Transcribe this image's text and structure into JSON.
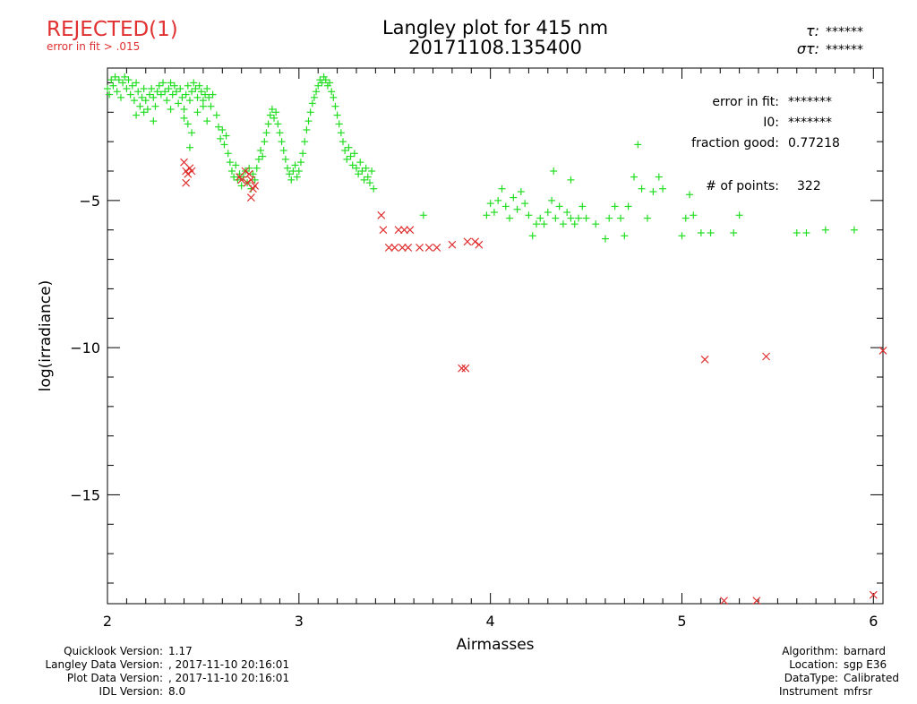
{
  "status": {
    "rejected": "REJECTED(1)",
    "reason": "error in fit > .015",
    "color": "#e03030"
  },
  "chart_data": {
    "type": "scatter",
    "title": "Langley plot for 415 nm",
    "subtitle": "20171108.135400",
    "xlabel": "Airmasses",
    "ylabel": "log(irradiance)",
    "xlim": [
      2,
      6.05
    ],
    "ylim": [
      -18.7,
      -0.5
    ],
    "x_ticks": [
      2,
      3,
      4,
      5,
      6
    ],
    "x_tick_labels": [
      "2",
      "3",
      "4",
      "5",
      "6"
    ],
    "y_ticks": [
      -5,
      -10,
      -15
    ],
    "y_tick_labels": [
      "−5",
      "−10",
      "−15"
    ],
    "tau_label": "τ",
    "tau_value": "******",
    "sigma_label": "στ",
    "sigma_value": "******",
    "stats": {
      "error_in_fit_label": "error in fit:",
      "error_in_fit_value": "*******",
      "i0_label": "I0:",
      "i0_value": "*******",
      "fraction_good_label": "fraction good:",
      "fraction_good_value": "0.77218",
      "points_label": "# of points:",
      "points_value": "322"
    },
    "series": [
      {
        "name": "good",
        "marker": "+",
        "color": "#22dd22",
        "points": [
          [
            2.0,
            -1.2
          ],
          [
            2.01,
            -1.4
          ],
          [
            2.02,
            -0.9
          ],
          [
            2.03,
            -1.1
          ],
          [
            2.04,
            -0.8
          ],
          [
            2.05,
            -1.3
          ],
          [
            2.06,
            -0.9
          ],
          [
            2.07,
            -1.5
          ],
          [
            2.08,
            -1.0
          ],
          [
            2.09,
            -0.8
          ],
          [
            2.1,
            -1.2
          ],
          [
            2.11,
            -0.9
          ],
          [
            2.12,
            -1.4
          ],
          [
            2.13,
            -1.1
          ],
          [
            2.14,
            -1.6
          ],
          [
            2.15,
            -1.0
          ],
          [
            2.16,
            -1.3
          ],
          [
            2.17,
            -1.8
          ],
          [
            2.18,
            -1.5
          ],
          [
            2.19,
            -1.2
          ],
          [
            2.2,
            -1.6
          ],
          [
            2.21,
            -1.9
          ],
          [
            2.22,
            -1.4
          ],
          [
            2.23,
            -1.2
          ],
          [
            2.24,
            -1.5
          ],
          [
            2.25,
            -1.8
          ],
          [
            2.26,
            -1.3
          ],
          [
            2.27,
            -1.1
          ],
          [
            2.28,
            -1.4
          ],
          [
            2.29,
            -1.0
          ],
          [
            2.3,
            -1.3
          ],
          [
            2.31,
            -1.6
          ],
          [
            2.32,
            -1.2
          ],
          [
            2.33,
            -1.0
          ],
          [
            2.34,
            -1.4
          ],
          [
            2.35,
            -1.1
          ],
          [
            2.36,
            -1.3
          ],
          [
            2.37,
            -1.7
          ],
          [
            2.38,
            -1.2
          ],
          [
            2.39,
            -1.5
          ],
          [
            2.4,
            -1.9
          ],
          [
            2.41,
            -1.4
          ],
          [
            2.42,
            -1.1
          ],
          [
            2.43,
            -1.6
          ],
          [
            2.44,
            -1.3
          ],
          [
            2.45,
            -1.0
          ],
          [
            2.46,
            -1.2
          ],
          [
            2.47,
            -1.5
          ],
          [
            2.48,
            -1.1
          ],
          [
            2.49,
            -1.3
          ],
          [
            2.5,
            -1.6
          ],
          [
            2.51,
            -1.4
          ],
          [
            2.52,
            -1.2
          ],
          [
            2.53,
            -1.5
          ],
          [
            2.54,
            -1.8
          ],
          [
            2.15,
            -2.1
          ],
          [
            2.19,
            -2.0
          ],
          [
            2.24,
            -2.3
          ],
          [
            2.33,
            -1.9
          ],
          [
            2.4,
            -2.2
          ],
          [
            2.42,
            -2.4
          ],
          [
            2.44,
            -2.7
          ],
          [
            2.43,
            -3.2
          ],
          [
            2.47,
            -2.0
          ],
          [
            2.5,
            -1.8
          ],
          [
            2.52,
            -2.3
          ],
          [
            2.55,
            -1.4
          ],
          [
            2.57,
            -2.1
          ],
          [
            2.58,
            -2.5
          ],
          [
            2.59,
            -2.9
          ],
          [
            2.6,
            -2.6
          ],
          [
            2.61,
            -3.1
          ],
          [
            2.62,
            -2.8
          ],
          [
            2.63,
            -3.4
          ],
          [
            2.64,
            -3.7
          ],
          [
            2.65,
            -4.0
          ],
          [
            2.66,
            -4.2
          ],
          [
            2.67,
            -3.8
          ],
          [
            2.68,
            -4.3
          ],
          [
            2.69,
            -4.1
          ],
          [
            2.7,
            -4.5
          ],
          [
            2.71,
            -4.2
          ],
          [
            2.72,
            -4.0
          ],
          [
            2.73,
            -4.4
          ],
          [
            2.74,
            -3.9
          ],
          [
            2.75,
            -4.6
          ],
          [
            2.76,
            -4.1
          ],
          [
            2.77,
            -4.3
          ],
          [
            2.78,
            -3.9
          ],
          [
            2.79,
            -3.6
          ],
          [
            2.8,
            -3.3
          ],
          [
            2.81,
            -3.5
          ],
          [
            2.82,
            -3.0
          ],
          [
            2.83,
            -2.7
          ],
          [
            2.84,
            -2.4
          ],
          [
            2.85,
            -2.1
          ],
          [
            2.86,
            -1.9
          ],
          [
            2.87,
            -2.2
          ],
          [
            2.88,
            -2.0
          ],
          [
            2.89,
            -2.4
          ],
          [
            2.9,
            -2.7
          ],
          [
            2.91,
            -3.0
          ],
          [
            2.92,
            -3.3
          ],
          [
            2.93,
            -3.6
          ],
          [
            2.94,
            -3.9
          ],
          [
            2.95,
            -4.1
          ],
          [
            2.96,
            -4.3
          ],
          [
            2.97,
            -4.0
          ],
          [
            2.98,
            -3.8
          ],
          [
            2.99,
            -4.2
          ],
          [
            3.0,
            -4.0
          ],
          [
            3.01,
            -3.7
          ],
          [
            3.02,
            -3.4
          ],
          [
            3.03,
            -3.0
          ],
          [
            3.04,
            -2.6
          ],
          [
            3.05,
            -2.3
          ],
          [
            3.06,
            -2.0
          ],
          [
            3.07,
            -1.7
          ],
          [
            3.08,
            -1.5
          ],
          [
            3.09,
            -1.3
          ],
          [
            3.1,
            -1.1
          ],
          [
            3.11,
            -0.9
          ],
          [
            3.12,
            -1.0
          ],
          [
            3.13,
            -0.8
          ],
          [
            3.14,
            -0.9
          ],
          [
            3.15,
            -1.1
          ],
          [
            3.16,
            -1.0
          ],
          [
            3.17,
            -1.3
          ],
          [
            3.18,
            -1.5
          ],
          [
            3.19,
            -1.8
          ],
          [
            3.2,
            -2.1
          ],
          [
            3.21,
            -2.4
          ],
          [
            3.22,
            -2.7
          ],
          [
            3.23,
            -3.0
          ],
          [
            3.24,
            -3.3
          ],
          [
            3.25,
            -3.6
          ],
          [
            3.26,
            -3.2
          ],
          [
            3.27,
            -3.5
          ],
          [
            3.28,
            -3.8
          ],
          [
            3.29,
            -3.4
          ],
          [
            3.3,
            -3.9
          ],
          [
            3.31,
            -4.1
          ],
          [
            3.32,
            -3.7
          ],
          [
            3.33,
            -4.0
          ],
          [
            3.34,
            -4.3
          ],
          [
            3.35,
            -3.9
          ],
          [
            3.36,
            -4.2
          ],
          [
            3.37,
            -4.4
          ],
          [
            3.38,
            -4.0
          ],
          [
            3.39,
            -4.6
          ],
          [
            3.65,
            -5.5
          ],
          [
            4.0,
            -5.1
          ],
          [
            4.02,
            -5.4
          ],
          [
            4.04,
            -5.0
          ],
          [
            4.06,
            -4.6
          ],
          [
            4.08,
            -5.2
          ],
          [
            4.1,
            -5.6
          ],
          [
            4.12,
            -4.9
          ],
          [
            4.14,
            -5.3
          ],
          [
            4.16,
            -4.7
          ],
          [
            4.18,
            -5.1
          ],
          [
            4.2,
            -5.5
          ],
          [
            4.22,
            -6.2
          ],
          [
            4.24,
            -5.8
          ],
          [
            4.26,
            -5.6
          ],
          [
            4.28,
            -5.8
          ],
          [
            4.3,
            -5.4
          ],
          [
            4.32,
            -5.0
          ],
          [
            4.34,
            -5.6
          ],
          [
            4.36,
            -5.2
          ],
          [
            4.38,
            -5.8
          ],
          [
            4.4,
            -5.4
          ],
          [
            4.42,
            -5.6
          ],
          [
            4.44,
            -5.8
          ],
          [
            4.46,
            -5.6
          ],
          [
            4.48,
            -5.2
          ],
          [
            4.5,
            -5.6
          ],
          [
            4.55,
            -5.8
          ],
          [
            4.6,
            -6.3
          ],
          [
            4.62,
            -5.6
          ],
          [
            4.65,
            -5.2
          ],
          [
            4.68,
            -5.6
          ],
          [
            4.7,
            -6.2
          ],
          [
            4.72,
            -5.2
          ],
          [
            4.75,
            -4.2
          ],
          [
            4.77,
            -3.1
          ],
          [
            4.79,
            -4.6
          ],
          [
            4.82,
            -5.6
          ],
          [
            4.85,
            -4.7
          ],
          [
            4.88,
            -4.2
          ],
          [
            4.9,
            -4.6
          ],
          [
            5.0,
            -6.2
          ],
          [
            5.02,
            -5.6
          ],
          [
            5.04,
            -4.8
          ],
          [
            5.06,
            -5.5
          ],
          [
            5.1,
            -6.1
          ],
          [
            5.15,
            -6.1
          ],
          [
            5.27,
            -6.1
          ],
          [
            5.3,
            -5.5
          ],
          [
            5.6,
            -6.1
          ],
          [
            5.65,
            -6.1
          ],
          [
            5.75,
            -6.0
          ],
          [
            5.9,
            -6.0
          ],
          [
            4.33,
            -4.0
          ],
          [
            4.42,
            -4.3
          ],
          [
            3.98,
            -5.5
          ]
        ]
      },
      {
        "name": "rejected",
        "marker": "x",
        "color": "#e03030",
        "points": [
          [
            2.4,
            -3.7
          ],
          [
            2.41,
            -4.0
          ],
          [
            2.42,
            -4.1
          ],
          [
            2.43,
            -3.9
          ],
          [
            2.44,
            -4.0
          ],
          [
            2.41,
            -4.4
          ],
          [
            2.69,
            -4.2
          ],
          [
            2.7,
            -4.3
          ],
          [
            2.72,
            -4.0
          ],
          [
            2.74,
            -4.1
          ],
          [
            2.75,
            -4.3
          ],
          [
            2.76,
            -4.6
          ],
          [
            2.77,
            -4.5
          ],
          [
            2.75,
            -4.9
          ],
          [
            2.73,
            -4.4
          ],
          [
            3.43,
            -5.5
          ],
          [
            3.44,
            -6.0
          ],
          [
            3.47,
            -6.6
          ],
          [
            3.5,
            -6.6
          ],
          [
            3.52,
            -6.0
          ],
          [
            3.54,
            -6.6
          ],
          [
            3.55,
            -6.0
          ],
          [
            3.57,
            -6.6
          ],
          [
            3.58,
            -6.0
          ],
          [
            3.63,
            -6.6
          ],
          [
            3.68,
            -6.6
          ],
          [
            3.72,
            -6.6
          ],
          [
            3.8,
            -6.5
          ],
          [
            3.88,
            -6.4
          ],
          [
            3.92,
            -6.4
          ],
          [
            3.94,
            -6.5
          ],
          [
            3.85,
            -10.7
          ],
          [
            3.87,
            -10.7
          ],
          [
            5.12,
            -10.4
          ],
          [
            5.44,
            -10.3
          ],
          [
            6.05,
            -10.1
          ],
          [
            5.22,
            -18.6
          ],
          [
            5.39,
            -18.6
          ],
          [
            6.0,
            -18.4
          ]
        ]
      }
    ]
  },
  "footer": {
    "left": [
      {
        "label": "Quicklook Version:",
        "value": "1.17"
      },
      {
        "label": "Langley Data Version:",
        "value": ", 2017-11-10 20:16:01"
      },
      {
        "label": "Plot Data Version:",
        "value": ", 2017-11-10 20:16:01"
      },
      {
        "label": "IDL Version:",
        "value": "8.0"
      }
    ],
    "right": [
      {
        "label": "Algorithm:",
        "value": "barnard"
      },
      {
        "label": "Location:",
        "value": "sgp E36"
      },
      {
        "label": "DataType:",
        "value": "Calibrated"
      },
      {
        "label": "Instrument",
        "value": "mfrsr"
      }
    ]
  }
}
